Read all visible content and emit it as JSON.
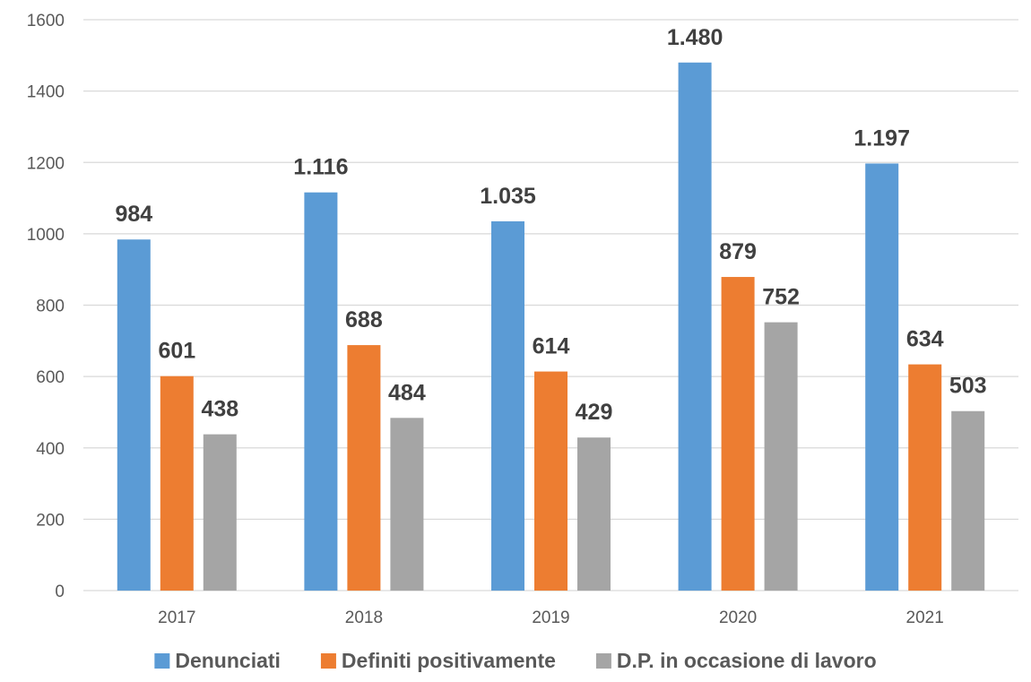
{
  "chart_data": {
    "type": "bar",
    "title": "",
    "xlabel": "",
    "ylabel": "",
    "ylim": [
      0,
      1600
    ],
    "yticks": [
      0,
      200,
      400,
      600,
      800,
      1000,
      1200,
      1400,
      1600
    ],
    "ytick_labels": [
      "0",
      "200",
      "400",
      "600",
      "800",
      "1000",
      "1200",
      "1400",
      "1600"
    ],
    "grid": true,
    "legend_position": "bottom",
    "categories": [
      "2017",
      "2018",
      "2019",
      "2020",
      "2021"
    ],
    "series": [
      {
        "name": "Denunciati",
        "color": "#5b9bd5",
        "values": [
          984,
          1116,
          1035,
          1480,
          1197
        ],
        "labels": [
          "984",
          "1.116",
          "1.035",
          "1.480",
          "1.197"
        ]
      },
      {
        "name": "Definiti positivamente",
        "color": "#ed7d31",
        "values": [
          601,
          688,
          614,
          879,
          634
        ],
        "labels": [
          "601",
          "688",
          "614",
          "879",
          "634"
        ]
      },
      {
        "name": "D.P. in occasione di lavoro",
        "color": "#a5a5a5",
        "values": [
          438,
          484,
          429,
          752,
          503
        ],
        "labels": [
          "438",
          "484",
          "429",
          "752",
          "503"
        ]
      }
    ]
  }
}
